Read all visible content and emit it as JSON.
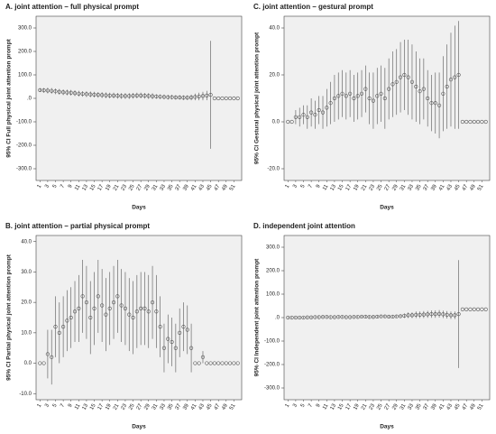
{
  "chart_data": [
    {
      "type": "errorbar",
      "title": "A. joint attention – full physical prompt",
      "ylabel": "95% CI Full physical joint attention prompt",
      "xlabel": "Days",
      "color": "#555555",
      "x": [
        1,
        2,
        3,
        4,
        5,
        6,
        7,
        8,
        9,
        10,
        11,
        12,
        13,
        14,
        15,
        16,
        17,
        18,
        19,
        20,
        21,
        22,
        23,
        24,
        25,
        26,
        27,
        28,
        29,
        30,
        31,
        32,
        33,
        34,
        35,
        36,
        37,
        38,
        39,
        40,
        41,
        42,
        43,
        44,
        45,
        46,
        47,
        48,
        49,
        50,
        51,
        52
      ],
      "values": [
        35,
        34,
        33,
        32,
        30,
        28,
        26,
        25,
        24,
        22,
        20,
        19,
        18,
        17,
        16,
        15,
        14,
        13,
        12,
        12,
        11,
        10,
        10,
        10,
        11,
        12,
        12,
        11,
        10,
        9,
        8,
        7,
        6,
        5,
        5,
        4,
        4,
        3,
        3,
        4,
        6,
        8,
        10,
        12,
        15,
        0,
        0,
        0,
        0,
        0,
        0,
        0
      ],
      "errors": [
        8,
        10,
        12,
        12,
        12,
        12,
        12,
        12,
        12,
        12,
        12,
        12,
        12,
        12,
        12,
        12,
        12,
        12,
        12,
        12,
        12,
        12,
        12,
        12,
        12,
        12,
        12,
        12,
        12,
        12,
        10,
        10,
        10,
        10,
        10,
        10,
        10,
        10,
        10,
        12,
        14,
        16,
        18,
        20,
        230,
        0,
        0,
        0,
        0,
        0,
        0,
        0
      ],
      "xlim": [
        0,
        53
      ],
      "xticks": [
        1,
        3,
        5,
        7,
        9,
        11,
        13,
        15,
        17,
        19,
        21,
        23,
        25,
        27,
        29,
        31,
        33,
        35,
        37,
        39,
        41,
        43,
        45,
        47,
        49,
        51
      ],
      "ylim": [
        -350,
        350
      ],
      "yticks": [
        {
          "value": -300,
          "label": "-300.0"
        },
        {
          "value": -200,
          "label": "-200.0"
        },
        {
          "value": -100,
          "label": "-100.0"
        },
        {
          "value": 0,
          "label": ".0"
        },
        {
          "value": 100,
          "label": "100.0"
        },
        {
          "value": 200,
          "label": "200.0"
        },
        {
          "value": 300,
          "label": "300.0"
        }
      ]
    },
    {
      "type": "errorbar",
      "title": "C. joint attention – gestural prompt",
      "ylabel": "95% CI Gestural physical joint attention prompt",
      "xlabel": "Days",
      "color": "#555555",
      "x": [
        1,
        2,
        3,
        4,
        5,
        6,
        7,
        8,
        9,
        10,
        11,
        12,
        13,
        14,
        15,
        16,
        17,
        18,
        19,
        20,
        21,
        22,
        23,
        24,
        25,
        26,
        27,
        28,
        29,
        30,
        31,
        32,
        33,
        34,
        35,
        36,
        37,
        38,
        39,
        40,
        41,
        42,
        43,
        44,
        45,
        46,
        47,
        48,
        49,
        50,
        51,
        52
      ],
      "values": [
        0,
        0,
        2,
        2,
        3,
        2,
        4,
        3,
        5,
        4,
        6,
        8,
        10,
        11,
        12,
        11,
        12,
        10,
        11,
        12,
        14,
        10,
        9,
        11,
        12,
        10,
        14,
        16,
        17,
        19,
        20,
        19,
        17,
        15,
        13,
        14,
        10,
        8,
        8,
        7,
        12,
        15,
        18,
        19,
        20,
        0,
        0,
        0,
        0,
        0,
        0,
        0
      ],
      "errors": [
        0,
        0,
        3,
        4,
        4,
        5,
        6,
        6,
        6,
        7,
        8,
        9,
        10,
        10,
        10,
        10,
        10,
        10,
        10,
        10,
        10,
        11,
        12,
        12,
        12,
        13,
        13,
        14,
        14,
        15,
        15,
        16,
        16,
        15,
        14,
        13,
        12,
        12,
        13,
        14,
        16,
        18,
        20,
        22,
        23,
        0,
        0,
        0,
        0,
        0,
        0,
        0
      ],
      "xlim": [
        0,
        53
      ],
      "xticks": [
        1,
        3,
        5,
        7,
        9,
        11,
        13,
        15,
        17,
        19,
        21,
        23,
        25,
        27,
        29,
        31,
        33,
        35,
        37,
        39,
        41,
        43,
        45,
        47,
        49,
        51
      ],
      "ylim": [
        -25,
        45
      ],
      "yticks": [
        {
          "value": -20,
          "label": "-20.0"
        },
        {
          "value": 0,
          "label": "0.0"
        },
        {
          "value": 20,
          "label": "20.0"
        },
        {
          "value": 40,
          "label": "40.0"
        }
      ]
    },
    {
      "type": "errorbar",
      "title": "B. joint attention – partial physical prompt",
      "ylabel": "95% CI Partial physical joint attention prompt",
      "xlabel": "Days",
      "color": "#555555",
      "x": [
        1,
        2,
        3,
        4,
        5,
        6,
        7,
        8,
        9,
        10,
        11,
        12,
        13,
        14,
        15,
        16,
        17,
        18,
        19,
        20,
        21,
        22,
        23,
        24,
        25,
        26,
        27,
        28,
        29,
        30,
        31,
        32,
        33,
        34,
        35,
        36,
        37,
        38,
        39,
        40,
        41,
        42,
        43,
        44,
        45,
        46,
        47,
        48,
        49,
        50,
        51,
        52
      ],
      "values": [
        0,
        0,
        3,
        2,
        12,
        10,
        12,
        14,
        15,
        17,
        18,
        22,
        20,
        15,
        18,
        22,
        19,
        16,
        18,
        20,
        22,
        19,
        18,
        16,
        15,
        17,
        18,
        18,
        17,
        20,
        17,
        12,
        5,
        8,
        7,
        5,
        10,
        12,
        11,
        5,
        0,
        0,
        2,
        0,
        0,
        0,
        0,
        0,
        0,
        0,
        0,
        0
      ],
      "errors": [
        0,
        0,
        8,
        9,
        10,
        10,
        10,
        10,
        10,
        10,
        11,
        12,
        12,
        12,
        12,
        12,
        12,
        12,
        12,
        12,
        12,
        12,
        12,
        12,
        12,
        12,
        12,
        12,
        12,
        12,
        12,
        10,
        8,
        8,
        8,
        8,
        8,
        8,
        8,
        8,
        0,
        0,
        2,
        0,
        0,
        0,
        0,
        0,
        0,
        0,
        0,
        0
      ],
      "xlim": [
        0,
        53
      ],
      "xticks": [
        1,
        3,
        5,
        7,
        9,
        11,
        13,
        15,
        17,
        19,
        21,
        23,
        25,
        27,
        29,
        31,
        33,
        35,
        37,
        39,
        41,
        43,
        45,
        47,
        49,
        51
      ],
      "ylim": [
        -12,
        42
      ],
      "yticks": [
        {
          "value": -10,
          "label": "-10.0"
        },
        {
          "value": 0,
          "label": "0.0"
        },
        {
          "value": 10,
          "label": "10.0"
        },
        {
          "value": 20,
          "label": "20.0"
        },
        {
          "value": 30,
          "label": "30.0"
        },
        {
          "value": 40,
          "label": "40.0"
        }
      ]
    },
    {
      "type": "errorbar",
      "title": "D. independent joint attention",
      "ylabel": "95% CI Independent joint attention prompt",
      "xlabel": "Days",
      "color": "#555555",
      "x": [
        1,
        2,
        3,
        4,
        5,
        6,
        7,
        8,
        9,
        10,
        11,
        12,
        13,
        14,
        15,
        16,
        17,
        18,
        19,
        20,
        21,
        22,
        23,
        24,
        25,
        26,
        27,
        28,
        29,
        30,
        31,
        32,
        33,
        34,
        35,
        36,
        37,
        38,
        39,
        40,
        41,
        42,
        43,
        44,
        45,
        46,
        47,
        48,
        49,
        50,
        51,
        52
      ],
      "values": [
        0,
        0,
        0,
        0,
        0,
        1,
        1,
        2,
        2,
        3,
        3,
        2,
        2,
        3,
        3,
        2,
        2,
        3,
        3,
        4,
        4,
        3,
        3,
        4,
        5,
        5,
        4,
        4,
        5,
        6,
        8,
        10,
        10,
        12,
        12,
        13,
        14,
        15,
        15,
        16,
        14,
        12,
        10,
        10,
        15,
        35,
        35,
        35,
        35,
        35,
        35,
        35
      ],
      "errors": [
        3,
        3,
        3,
        3,
        4,
        4,
        4,
        4,
        4,
        4,
        4,
        4,
        4,
        4,
        4,
        4,
        4,
        4,
        4,
        4,
        5,
        5,
        5,
        5,
        5,
        5,
        5,
        5,
        5,
        6,
        10,
        12,
        12,
        14,
        14,
        15,
        15,
        16,
        16,
        16,
        16,
        16,
        16,
        16,
        230,
        0,
        0,
        0,
        0,
        0,
        0,
        0
      ],
      "xlim": [
        0,
        53
      ],
      "xticks": [
        1,
        3,
        5,
        7,
        9,
        11,
        13,
        15,
        17,
        19,
        21,
        23,
        25,
        27,
        29,
        31,
        33,
        35,
        37,
        39,
        41,
        43,
        45,
        47,
        49,
        51
      ],
      "ylim": [
        -350,
        350
      ],
      "yticks": [
        {
          "value": -300,
          "label": "-300.0"
        },
        {
          "value": -200,
          "label": "-200.0"
        },
        {
          "value": -100,
          "label": "-100.0"
        },
        {
          "value": 0,
          "label": ".0"
        },
        {
          "value": 100,
          "label": "100.0"
        },
        {
          "value": 200,
          "label": "200.0"
        },
        {
          "value": 300,
          "label": "300.0"
        }
      ]
    }
  ]
}
